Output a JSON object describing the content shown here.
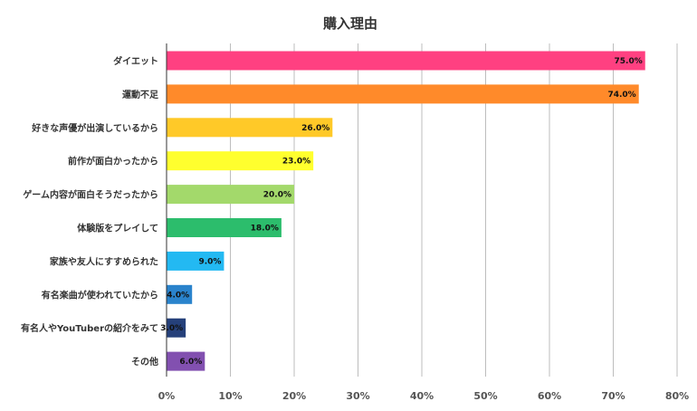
{
  "chart_data": {
    "type": "bar",
    "orientation": "horizontal",
    "title": "購入理由",
    "categories": [
      "ダイエット",
      "運動不足",
      "好きな声優が出演しているから",
      "前作が面白かったから",
      "ゲーム内容が面白そうだったから",
      "体験版をプレイして",
      "家族や友人にすすめられた",
      "有名楽曲が使われていたから",
      "有名人やYouTuberの紹介をみて",
      "その他"
    ],
    "values": [
      75.0,
      74.0,
      26.0,
      23.0,
      20.0,
      18.0,
      9.0,
      4.0,
      3.0,
      6.0
    ],
    "data_labels": [
      "75.0%",
      "74.0%",
      "26.0%",
      "23.0%",
      "20.0%",
      "18.0%",
      "9.0%",
      "4.0%",
      "3.0%",
      "6.0%"
    ],
    "colors": [
      "#ff4081",
      "#ff8a2a",
      "#ffc928",
      "#ffff2e",
      "#a3d96b",
      "#2cbd6c",
      "#23b9f2",
      "#2a83cc",
      "#25407a",
      "#8250b0"
    ],
    "xlim": [
      0,
      80
    ],
    "xticks": [
      0,
      10,
      20,
      30,
      40,
      50,
      60,
      70,
      80
    ],
    "xtick_labels": [
      "0%",
      "10%",
      "20%",
      "30%",
      "40%",
      "50%",
      "60%",
      "70%",
      "80%"
    ],
    "grid": true,
    "legend": "none"
  }
}
